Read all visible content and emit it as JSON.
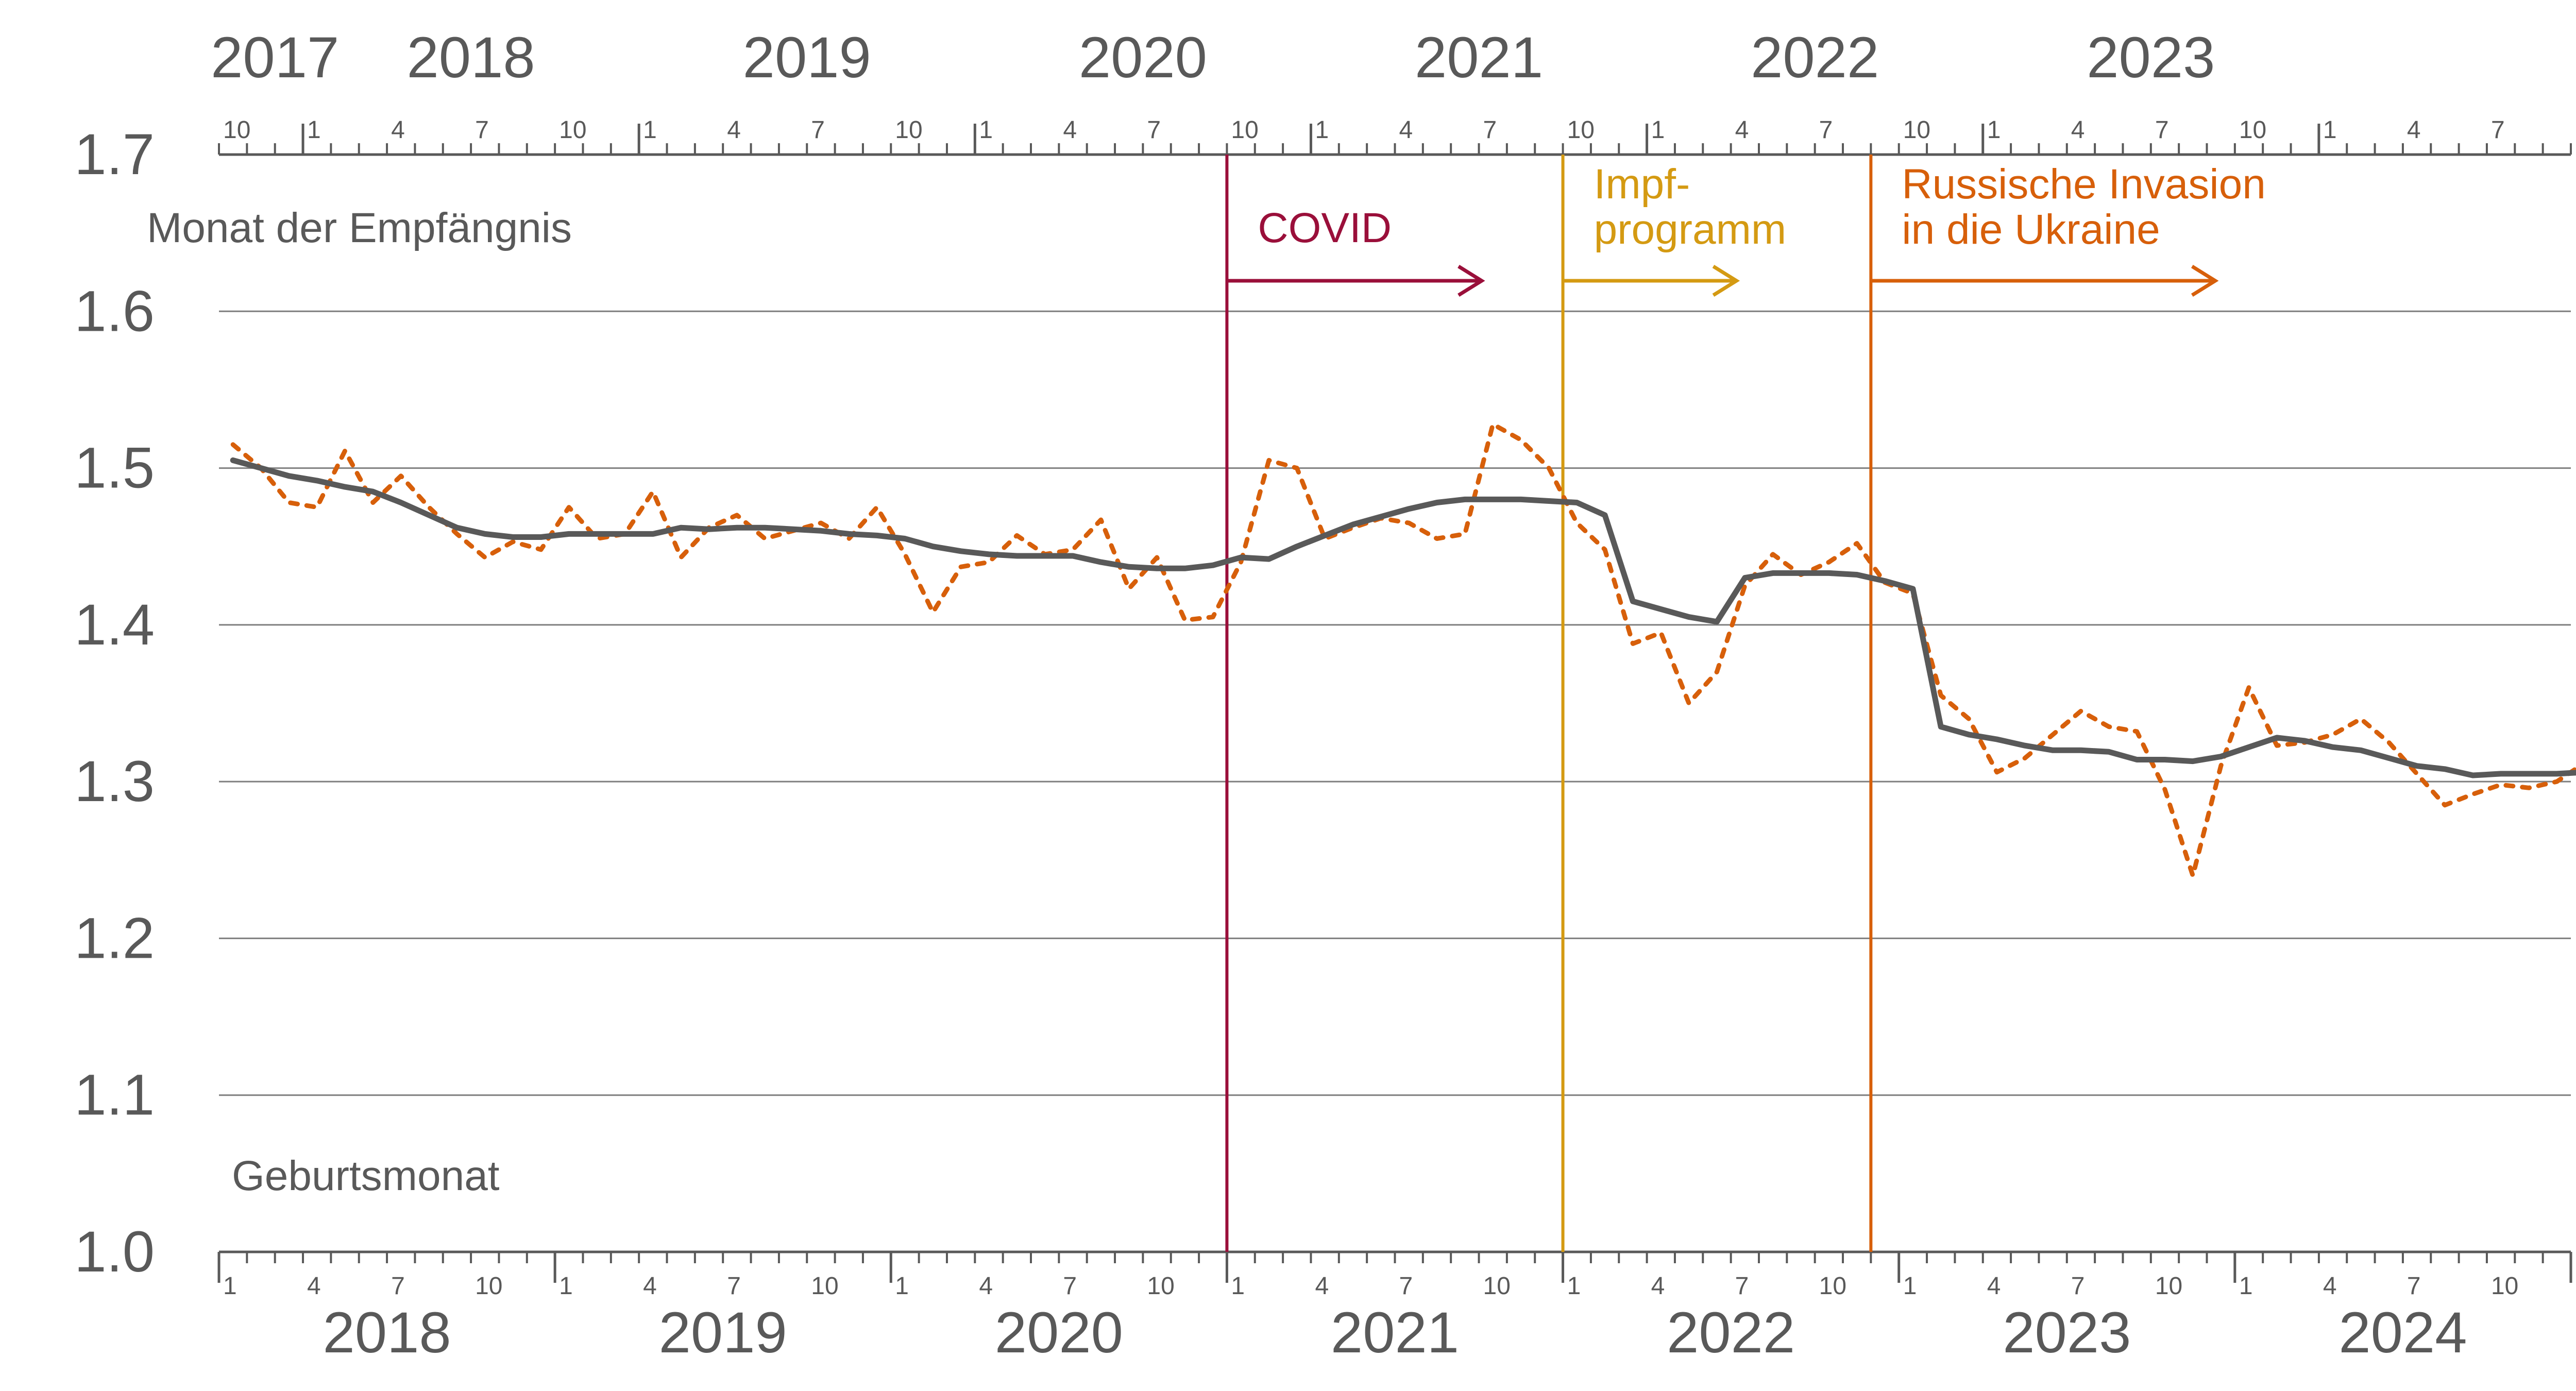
{
  "colors": {
    "grid": "#7f7f7f",
    "axis": "#595959",
    "text": "#595959",
    "solid_line": "#595959",
    "dotted_line": "#d75f0a",
    "covid": "#9a0f3a",
    "impf": "#d49a12",
    "ukraine": "#d75f0a"
  },
  "labels": {
    "top_axis": "Monat der Empfängnis",
    "bottom_axis": "Geburtsmonat"
  },
  "chart_data": {
    "type": "line",
    "title": "",
    "ylim": [
      1.0,
      1.7
    ],
    "yticks": [
      "1.0",
      "1.1",
      "1.2",
      "1.3",
      "1.4",
      "1.5",
      "1.6",
      "1.7"
    ],
    "grid": true,
    "x_unit": "birth month (index 1 = Jan 2018)",
    "bottom_axis": {
      "label": "Geburtsmonat",
      "years": [
        "2018",
        "2019",
        "2020",
        "2021",
        "2022",
        "2023",
        "2024"
      ],
      "month_ticks": [
        "1",
        "4",
        "7",
        "10"
      ]
    },
    "top_axis": {
      "label": "Monat der Empfängnis",
      "years": [
        "2017",
        "2018",
        "2019",
        "2020",
        "2021",
        "2022",
        "2023"
      ],
      "month_ticks": [
        "1",
        "4",
        "7",
        "10"
      ],
      "offset_months": 9
    },
    "series": [
      {
        "style": "solid",
        "values": [
          1.505,
          1.5,
          1.495,
          1.492,
          1.488,
          1.485,
          1.478,
          1.47,
          1.462,
          1.458,
          1.456,
          1.456,
          1.458,
          1.458,
          1.458,
          1.458,
          1.462,
          1.461,
          1.462,
          1.462,
          1.461,
          1.46,
          1.458,
          1.457,
          1.455,
          1.45,
          1.447,
          1.445,
          1.444,
          1.444,
          1.444,
          1.44,
          1.437,
          1.436,
          1.436,
          1.438,
          1.443,
          1.442,
          1.45,
          1.457,
          1.464,
          1.469,
          1.474,
          1.478,
          1.48,
          1.48,
          1.48,
          1.479,
          1.478,
          1.47,
          1.415,
          1.41,
          1.405,
          1.402,
          1.43,
          1.433,
          1.433,
          1.433,
          1.432,
          1.428,
          1.423,
          1.335,
          1.33,
          1.327,
          1.323,
          1.32,
          1.32,
          1.319,
          1.314,
          1.314,
          1.313,
          1.316,
          1.322,
          1.328,
          1.326,
          1.322,
          1.32,
          1.315,
          1.31,
          1.308,
          1.304,
          1.305,
          1.305,
          1.305,
          1.306,
          1.306,
          1.308
        ]
      },
      {
        "style": "dotted",
        "values": [
          1.515,
          1.5,
          1.478,
          1.475,
          1.511,
          1.478,
          1.495,
          1.475,
          1.458,
          1.443,
          1.453,
          1.448,
          1.475,
          1.455,
          1.458,
          1.485,
          1.443,
          1.462,
          1.47,
          1.455,
          1.46,
          1.465,
          1.455,
          1.475,
          1.445,
          1.408,
          1.437,
          1.44,
          1.457,
          1.445,
          1.448,
          1.467,
          1.423,
          1.443,
          1.403,
          1.405,
          1.44,
          1.505,
          1.5,
          1.455,
          1.462,
          1.468,
          1.465,
          1.455,
          1.458,
          1.528,
          1.518,
          1.5,
          1.465,
          1.448,
          1.388,
          1.395,
          1.35,
          1.37,
          1.425,
          1.445,
          1.432,
          1.44,
          1.452,
          1.427,
          1.42,
          1.355,
          1.34,
          1.306,
          1.315,
          1.33,
          1.345,
          1.335,
          1.332,
          1.295,
          1.24,
          1.31,
          1.36,
          1.323,
          1.325,
          1.33,
          1.34,
          1.325,
          1.305,
          1.285,
          1.292,
          1.298,
          1.296,
          1.3,
          1.312,
          1.322,
          1.305
        ]
      }
    ],
    "annotations": [
      {
        "label_lines": [
          "COVID"
        ],
        "x_month": 36.5,
        "arrow_end_month": 45.6,
        "color": "covid"
      },
      {
        "label_lines": [
          "Impf-",
          "programm"
        ],
        "x_month": 48.5,
        "arrow_end_month": 54.7,
        "color": "impf"
      },
      {
        "label_lines": [
          "Russische Invasion",
          "in die Ukraine"
        ],
        "x_month": 59.5,
        "arrow_end_month": 71.8,
        "color": "ukraine"
      }
    ]
  }
}
